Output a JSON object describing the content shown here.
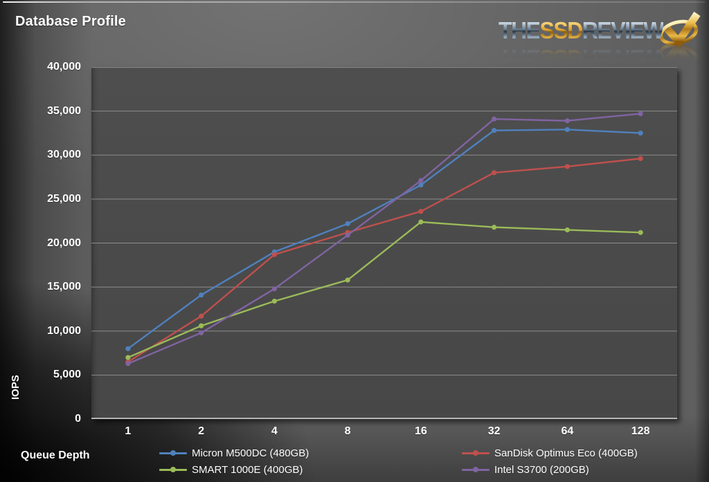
{
  "page": {
    "title": "Database Profile"
  },
  "logo": {
    "word_the": "THE",
    "word_ssd": "SSD",
    "word_review": "REVIEW",
    "checkmark_color_gold": "#d99a26",
    "chrome_color": "#c3d2de"
  },
  "chart_data": {
    "type": "line",
    "title": "Database Profile",
    "xlabel": "Queue Depth",
    "ylabel": "IOPS",
    "categories": [
      "1",
      "2",
      "4",
      "8",
      "16",
      "32",
      "64",
      "128"
    ],
    "series": [
      {
        "name": "Micron M500DC (480GB)",
        "color": "#4F81BD",
        "values": [
          8000,
          14100,
          19000,
          22200,
          26600,
          32800,
          32900,
          32500
        ]
      },
      {
        "name": "SanDisk Optimus Eco (400GB)",
        "color": "#C0504D",
        "values": [
          6500,
          11700,
          18700,
          21200,
          23600,
          28000,
          28700,
          29600
        ]
      },
      {
        "name": "SMART 1000E (400GB)",
        "color": "#9BBB59",
        "values": [
          7000,
          10600,
          13400,
          15800,
          22400,
          21800,
          21500,
          21200
        ]
      },
      {
        "name": "Intel S3700 (200GB)",
        "color": "#8064A2",
        "values": [
          6300,
          9800,
          14800,
          20900,
          27100,
          34100,
          33900,
          34700
        ]
      }
    ],
    "ylim": [
      0,
      40000
    ],
    "ytick_step": 5000,
    "ytick_labels": [
      "0",
      "5,000",
      "10,000",
      "15,000",
      "20,000",
      "25,000",
      "30,000",
      "35,000",
      "40,000"
    ],
    "grid": true,
    "gridline_color": "#9e9e9e",
    "axis_line_color": "#b5b5b5",
    "legend_position": "bottom-two-columns"
  }
}
